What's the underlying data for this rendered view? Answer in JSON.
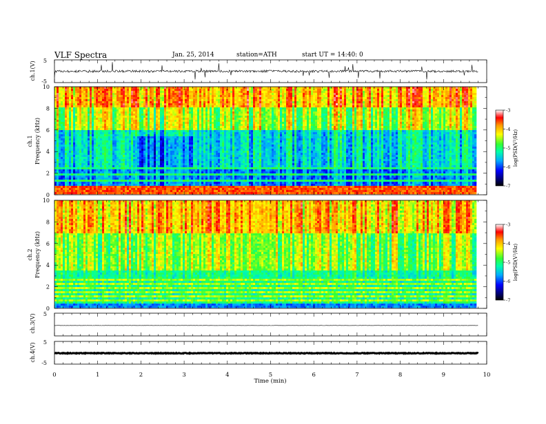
{
  "header": {
    "title": "VLF Spectra",
    "date": "Jan. 25, 2014",
    "station": "station=ATH",
    "start": "start UT =  14:40: 0"
  },
  "chart_data": [
    {
      "id": "ch1-waveform",
      "type": "line",
      "ylabel": "ch.1(V)",
      "ylim": [
        -5,
        5
      ],
      "yticks": [
        5,
        -5
      ],
      "xlim": [
        0,
        10
      ],
      "data_end_min": 9.8,
      "baseline_v": 0.0,
      "noise_amplitude_v": 1.0
    },
    {
      "id": "ch1-spectrogram",
      "type": "heatmap",
      "channel_label": "ch.1",
      "ylabel": "Frequency (kHz)",
      "ylim": [
        0,
        10
      ],
      "yticks": [
        0,
        2,
        4,
        6,
        8,
        10
      ],
      "xlim": [
        0,
        10
      ],
      "data_end_min": 9.8,
      "colorbar": {
        "label": "log(PSD(V²/Hz)",
        "ticks": [
          -3,
          -4,
          -5,
          -6,
          -7
        ],
        "range": [
          -7,
          -3
        ]
      }
    },
    {
      "id": "ch2-spectrogram",
      "type": "heatmap",
      "channel_label": "ch.2",
      "ylabel": "Frequency (kHz)",
      "ylim": [
        0,
        10
      ],
      "yticks": [
        0,
        2,
        4,
        6,
        8,
        10
      ],
      "xlim": [
        0,
        10
      ],
      "data_end_min": 9.8,
      "colorbar": {
        "label": "log(PSD(V²/Hz)",
        "ticks": [
          -3,
          -4,
          -5,
          -6,
          -7
        ],
        "range": [
          -7,
          -3
        ]
      }
    },
    {
      "id": "ch3-waveform",
      "type": "line",
      "ylabel": "ch.3(V)",
      "ylim": [
        -5,
        5
      ],
      "yticks": [
        5,
        -5
      ],
      "xlim": [
        0,
        10
      ],
      "data_end_min": 9.8,
      "baseline_v": -0.4,
      "noise_amplitude_v": 0.1
    },
    {
      "id": "ch4-waveform",
      "type": "line",
      "ylabel": "ch.4(V)",
      "ylim": [
        -5,
        5
      ],
      "yticks": [
        5,
        -5
      ],
      "xlim": [
        0,
        10
      ],
      "data_end_min": 9.8,
      "baseline_v": -0.2,
      "noise_amplitude_v": 0.3
    }
  ],
  "xaxis": {
    "label": "Time (min)",
    "ticks": [
      0,
      1,
      2,
      3,
      4,
      5,
      6,
      7,
      8,
      9,
      10
    ]
  }
}
